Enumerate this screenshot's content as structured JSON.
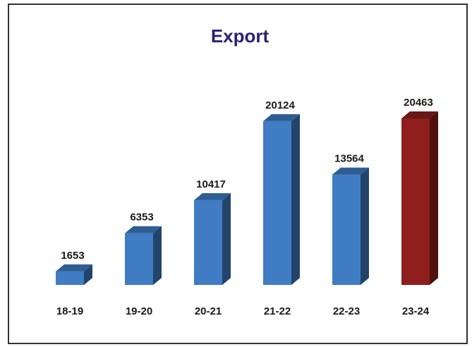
{
  "chart_data": {
    "type": "bar3d",
    "title": "Export",
    "categories": [
      "18-19",
      "19-20",
      "20-21",
      "21-22",
      "22-23",
      "23-24"
    ],
    "values": [
      1653,
      6353,
      10417,
      20124,
      13564,
      20463
    ],
    "colors": [
      "#3f7cc4",
      "#3f7cc4",
      "#3f7cc4",
      "#3f7cc4",
      "#3f7cc4",
      "#8e1f1d"
    ]
  }
}
